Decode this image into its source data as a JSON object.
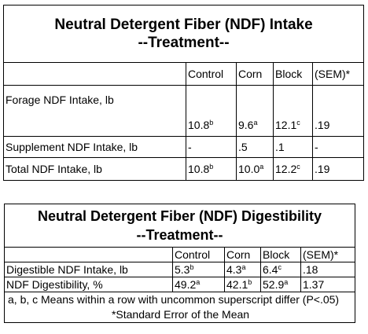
{
  "intake_table": {
    "title_line1": "Neutral Detergent Fiber (NDF) Intake",
    "title_line2": "--Treatment--",
    "headers": [
      "Control",
      "Corn",
      "Block",
      "(SEM)*"
    ],
    "rows": [
      {
        "label": "Forage NDF Intake, lb",
        "control": "10.8",
        "control_sup": "b",
        "corn": "9.6",
        "corn_sup": "a",
        "block": "12.1",
        "block_sup": "c",
        "sem": ".19"
      },
      {
        "label": "Supplement NDF Intake, lb",
        "control": "-",
        "control_sup": "",
        "corn": ".5",
        "corn_sup": "",
        "block": ".1",
        "block_sup": "",
        "sem": "-"
      },
      {
        "label": "Total NDF Intake, lb",
        "control": "10.8",
        "control_sup": "b",
        "corn": "10.0",
        "corn_sup": "a",
        "block": "12.2",
        "block_sup": "c",
        "sem": ".19"
      }
    ]
  },
  "digestibility_table": {
    "title_line1": "Neutral Detergent Fiber (NDF) Digestibility",
    "title_line2": "--Treatment--",
    "headers": [
      "Control",
      "Corn",
      "Block",
      "(SEM)*"
    ],
    "rows": [
      {
        "label": "Digestible NDF Intake, lb",
        "control": "5.3",
        "control_sup": "b",
        "corn": "4.3",
        "corn_sup": "a",
        "block": "6.4",
        "block_sup": "c",
        "sem": ".18"
      },
      {
        "label": "NDF Digestibility, %",
        "control": "49.2",
        "control_sup": "a",
        "corn": "42.1",
        "corn_sup": "b",
        "block": "52.9",
        "block_sup": "a",
        "sem": "1.37"
      }
    ],
    "footnote1": "a, b, c Means within a row with uncommon superscript differ (P<.05)",
    "footnote2": "*Standard Error of the Mean"
  }
}
